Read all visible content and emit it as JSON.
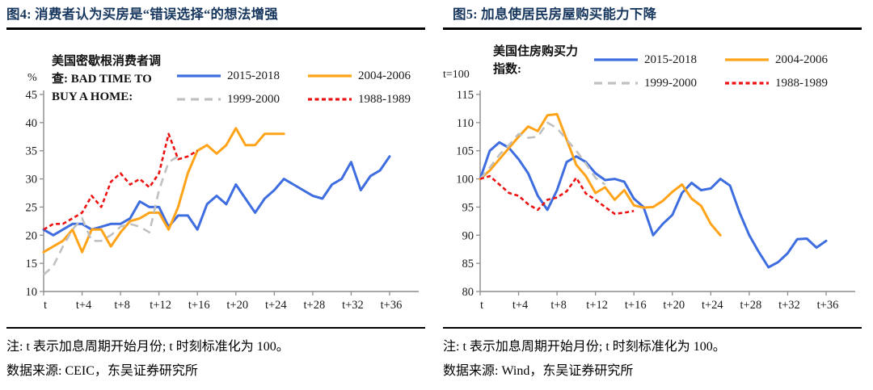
{
  "colors": {
    "title_navy": "#17375E",
    "axis_gray": "#8C8C8C",
    "tick_text": "#1A1A1A",
    "series_blue": "#3E6DE0",
    "series_orange": "#FFA319",
    "series_gray": "#C0C0C0",
    "series_red": "#EE1111"
  },
  "panels": [
    {
      "note": "注: t 表示加息周期开始月份; t 时刻标准化为 100。",
      "source": "数据来源: CEIC，东吴证券研究所"
    },
    {
      "note": "注: t 表示加息周期开始月份; t 时刻标准化为 100。",
      "source": "数据来源: Wind，东吴证券研究所"
    }
  ],
  "chart_data": [
    {
      "type": "line",
      "title": "图4:  消费者认为买房是“错误选择“的想法增强",
      "annotation": "美国密歇根消费者调\n查: BAD TIME TO\nBUY A HOME:",
      "y_unit": "%",
      "x_count": 37,
      "x_tick_step": 4,
      "x_tick_labels": [
        "t",
        "t+4",
        "t+8",
        "t+12",
        "t+16",
        "t+20",
        "t+24",
        "t+28",
        "t+32",
        "t+36"
      ],
      "ylim": [
        10,
        45
      ],
      "y_ticks": [
        45,
        40,
        35,
        30,
        25,
        20,
        15,
        10
      ],
      "grid": false,
      "legend_position": "top-right",
      "series": [
        {
          "name": "2015-2018",
          "color": "#3E6DE0",
          "dash": null,
          "width": 3,
          "values": [
            21,
            20,
            21,
            22,
            22,
            21,
            21.5,
            22,
            22,
            23,
            26,
            25,
            25,
            21.5,
            23.5,
            23.5,
            21,
            25.5,
            27,
            25.5,
            29,
            26.5,
            24,
            26.5,
            28,
            30,
            29,
            28,
            27,
            26.5,
            29,
            30,
            33,
            28,
            30.5,
            31.5,
            34
          ]
        },
        {
          "name": "2004-2006",
          "color": "#FFA319",
          "dash": null,
          "width": 3,
          "values": [
            17,
            18,
            19,
            21,
            17,
            21,
            21,
            18,
            20.5,
            22.5,
            23,
            24,
            24,
            21,
            25,
            31,
            35,
            36,
            34.5,
            36,
            39,
            36,
            36,
            38,
            38,
            38
          ]
        },
        {
          "name": "1999-2000",
          "color": "#C0C0C0",
          "dash": "10,7",
          "width": 2.6,
          "values": [
            13,
            14.5,
            18,
            21,
            23,
            19,
            19,
            20,
            21.5,
            22,
            21.5,
            20.5,
            28,
            33,
            34
          ]
        },
        {
          "name": "1988-1989",
          "color": "#EE1111",
          "dash": "5,3.5",
          "width": 2.6,
          "values": [
            21,
            22,
            22,
            23,
            24,
            27,
            25,
            29.5,
            31,
            29,
            30,
            28.5,
            31,
            38,
            33.5,
            34,
            35
          ]
        }
      ]
    },
    {
      "type": "line",
      "title": "图5:  加息使居民房屋购买能力下降",
      "annotation": "美国住房购买力\n指数:",
      "y_unit": "t=100",
      "x_count": 37,
      "x_tick_step": 4,
      "x_tick_labels": [
        "t",
        "t+4",
        "t+8",
        "t+12",
        "t+16",
        "t+20",
        "t+24",
        "t+28",
        "t+32",
        "t+36"
      ],
      "ylim": [
        80,
        115
      ],
      "y_ticks": [
        115,
        110,
        105,
        100,
        95,
        90,
        85,
        80
      ],
      "grid": false,
      "legend_position": "top-right",
      "series": [
        {
          "name": "2015-2018",
          "color": "#3E6DE0",
          "dash": null,
          "width": 3,
          "values": [
            100,
            105,
            106.5,
            105.5,
            103.5,
            101,
            97,
            94.5,
            98,
            103,
            104,
            103,
            101,
            99.8,
            100,
            99.5,
            96.5,
            95,
            90,
            92,
            93.6,
            97.5,
            99.3,
            98,
            98.3,
            100,
            98.8,
            94,
            90,
            87,
            84.3,
            85.2,
            86.8,
            89.3,
            89.4,
            87.8,
            89
          ]
        },
        {
          "name": "2004-2006",
          "color": "#FFA319",
          "dash": null,
          "width": 3,
          "values": [
            100,
            101.5,
            103.5,
            105.5,
            107.5,
            109.3,
            108.5,
            111.3,
            111.5,
            107,
            102.5,
            100.5,
            97.5,
            98.5,
            96.3,
            98,
            95.3,
            94.9,
            95,
            96.1,
            97.7,
            99,
            96.5,
            95.2,
            92,
            90
          ]
        },
        {
          "name": "1999-2000",
          "color": "#C0C0C0",
          "dash": "10,7",
          "width": 2.6,
          "values": [
            100,
            102,
            104.3,
            106,
            108,
            107.3,
            107.5,
            110,
            109,
            107,
            105,
            102.7,
            100.2,
            99
          ]
        },
        {
          "name": "1988-1989",
          "color": "#EE1111",
          "dash": "5,3.5",
          "width": 2.6,
          "values": [
            100,
            100.5,
            99,
            97.5,
            97,
            95.5,
            94.5,
            96.3,
            96.7,
            97.8,
            100.2,
            97.4,
            96.3,
            95,
            93.8,
            94,
            94.3
          ]
        }
      ]
    }
  ]
}
